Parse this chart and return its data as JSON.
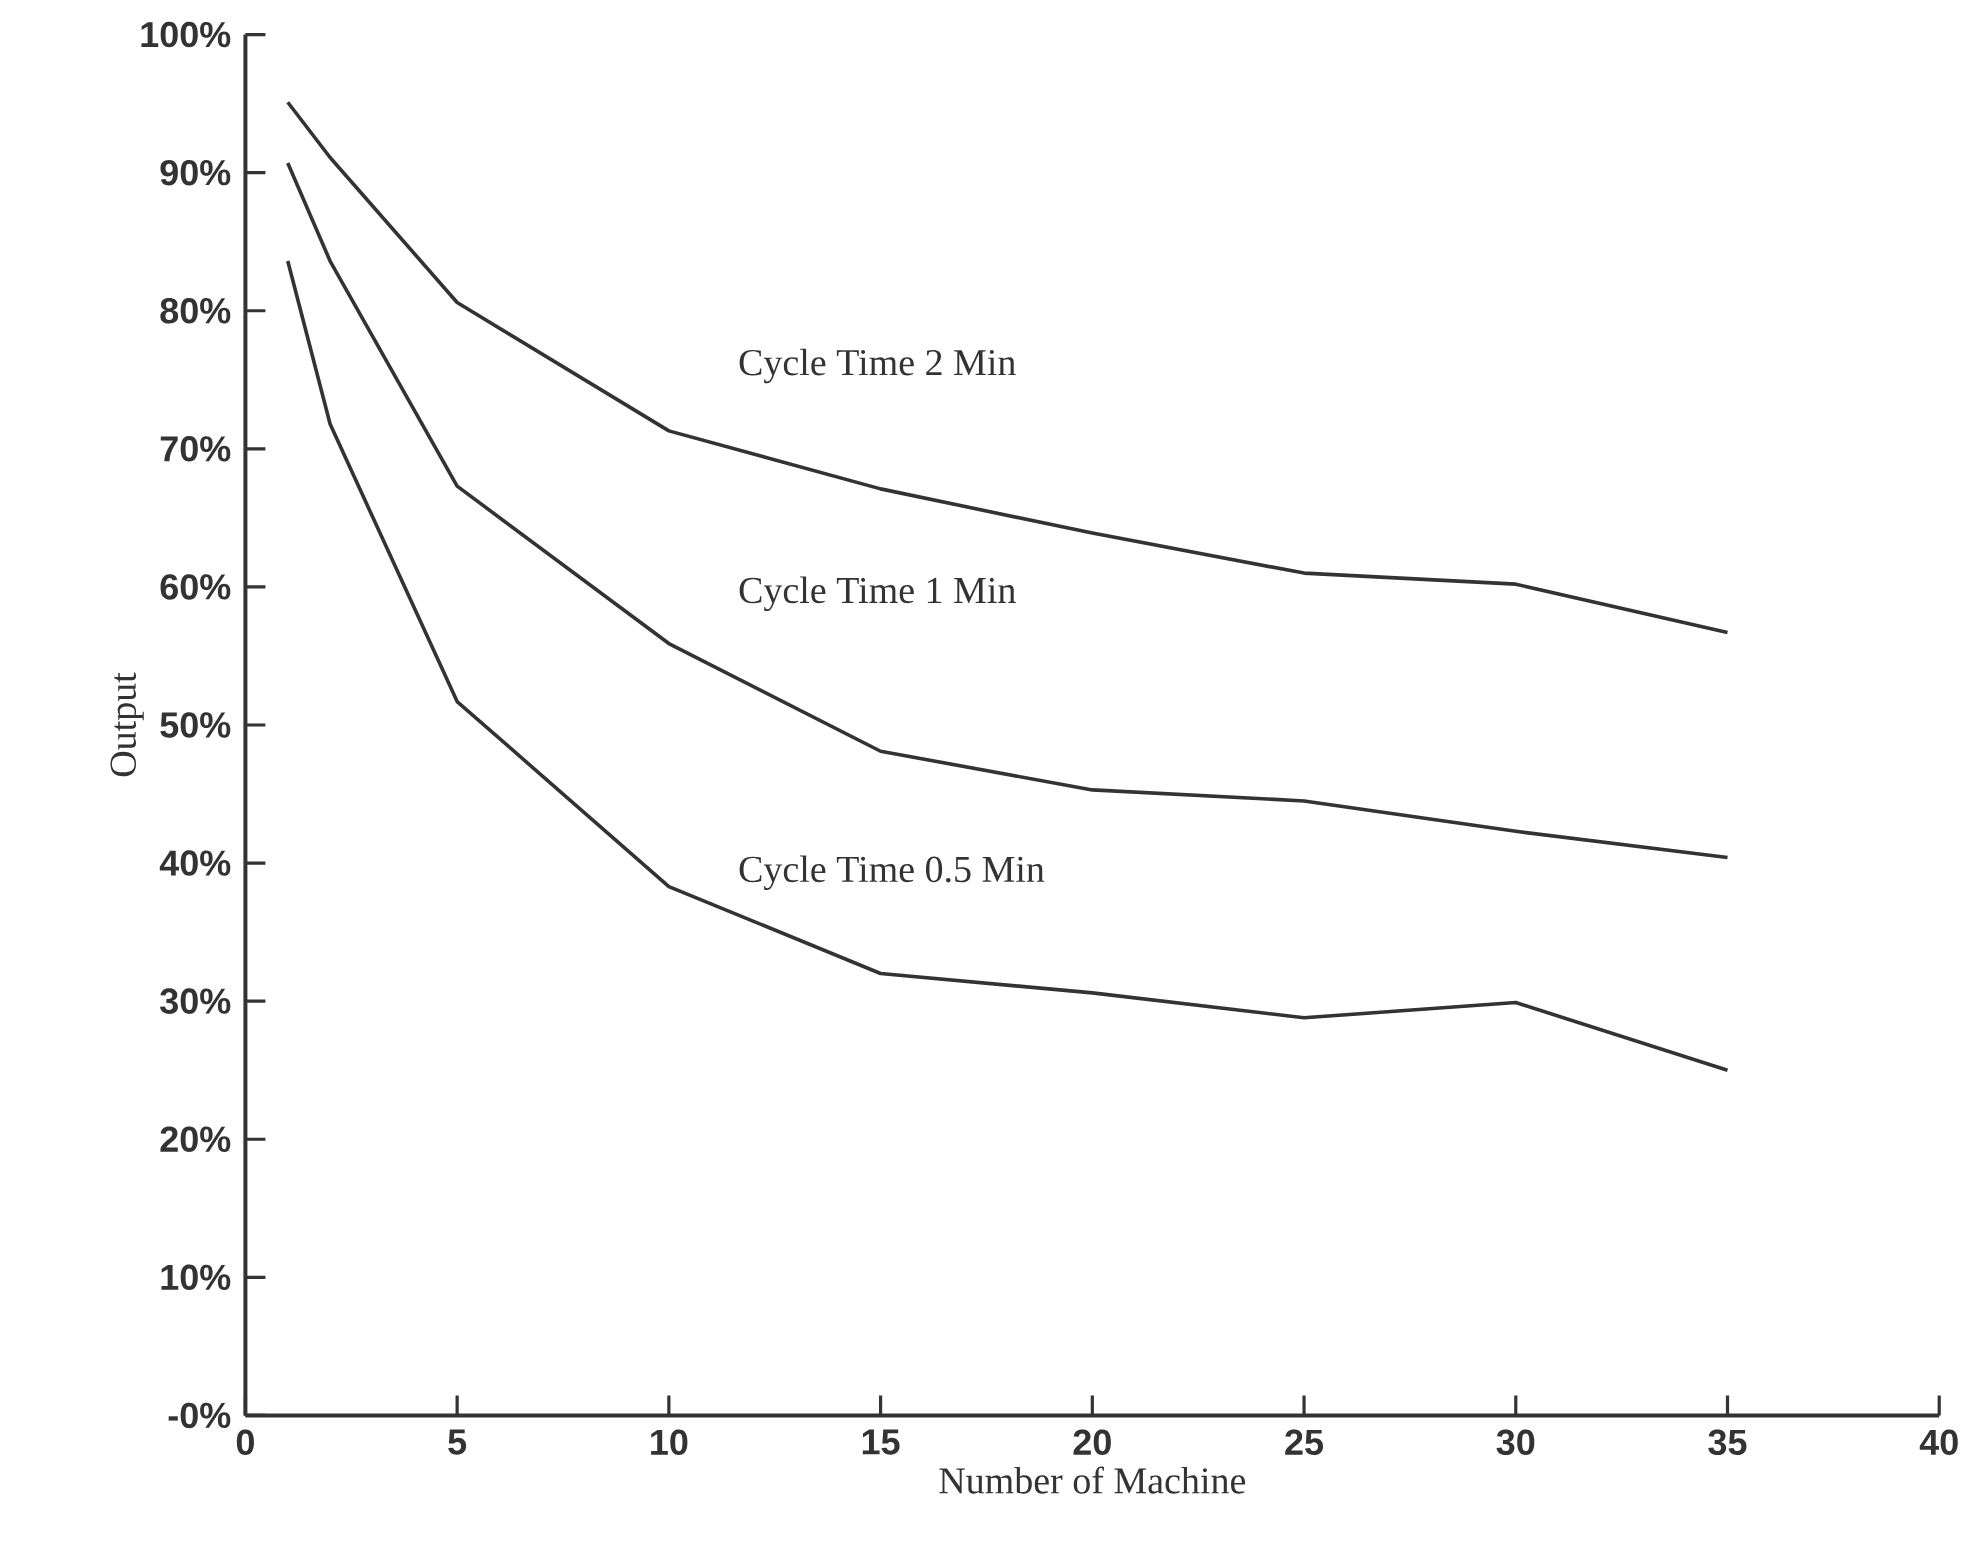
{
  "chart_data": {
    "type": "line",
    "xlabel": "Number of Machine",
    "ylabel": "Output",
    "x": [
      1,
      2,
      5,
      10,
      15,
      20,
      25,
      30,
      35
    ],
    "series": [
      {
        "name": "Cycle Time   2 Min",
        "color": "#333333",
        "values": [
          95.1,
          91.1,
          80.6,
          71.3,
          67.1,
          63.9,
          61.0,
          60.2,
          56.7
        ]
      },
      {
        "name": "Cycle Time   1 Min",
        "color": "#333333",
        "values": [
          90.7,
          83.6,
          67.3,
          55.9,
          48.1,
          45.3,
          44.5,
          42.3,
          40.4
        ]
      },
      {
        "name": "Cycle Time   0.5 Min",
        "color": "#333333",
        "values": [
          83.6,
          71.8,
          51.7,
          38.3,
          32.0,
          30.6,
          28.8,
          29.9,
          25.0
        ]
      }
    ],
    "xlim": [
      0,
      40
    ],
    "ylim": [
      0,
      100
    ],
    "xticks": [
      0,
      5,
      10,
      15,
      20,
      25,
      30,
      35,
      40
    ],
    "yticks": [
      {
        "value": 0,
        "label": "-0%"
      },
      {
        "value": 10,
        "label": "10%"
      },
      {
        "value": 20,
        "label": "20%"
      },
      {
        "value": 30,
        "label": "30%"
      },
      {
        "value": 40,
        "label": "40%"
      },
      {
        "value": 50,
        "label": "50%"
      },
      {
        "value": 60,
        "label": "60%"
      },
      {
        "value": 70,
        "label": "70%"
      },
      {
        "value": 80,
        "label": "80%"
      },
      {
        "value": 90,
        "label": "90%"
      },
      {
        "value": 100,
        "label": "100%"
      }
    ],
    "marker": "none",
    "line_style": "solid",
    "grid": false,
    "legend": false
  }
}
